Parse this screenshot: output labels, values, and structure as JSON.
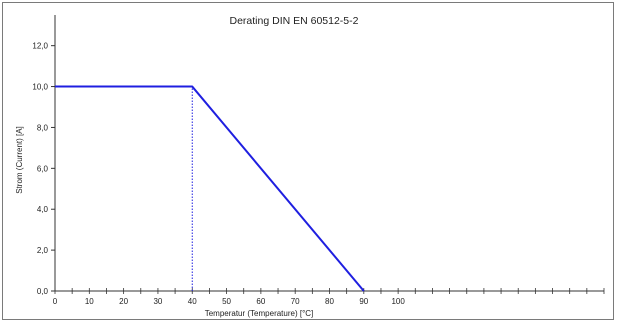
{
  "chart_data": {
    "type": "line",
    "title": "Derating DIN EN 60512-5-2",
    "xlabel": "Temperatur (Temperature) [°C]",
    "ylabel": "Strom (Current) [A]",
    "xlim": [
      0,
      160
    ],
    "ylim": [
      0,
      13.5
    ],
    "x_ticks": [
      0,
      10,
      20,
      30,
      40,
      50,
      60,
      70,
      80,
      90,
      100
    ],
    "x_tick_labels": [
      "0",
      "10",
      "20",
      "30",
      "40",
      "50",
      "60",
      "70",
      "80",
      "90",
      "100"
    ],
    "x_minor_step": 5,
    "y_ticks": [
      0,
      2,
      4,
      6,
      8,
      10,
      12
    ],
    "y_tick_labels": [
      "0,0",
      "2,0",
      "4,0",
      "6,0",
      "8,0",
      "10,0",
      "12,0"
    ],
    "grid": false,
    "series": [
      {
        "x": [
          0,
          40,
          90
        ],
        "y": [
          10.0,
          10.0,
          0.0
        ],
        "color": "#1f1fe0"
      }
    ],
    "reference_lines": [
      {
        "orientation": "vertical",
        "x": 40,
        "y_from": 0,
        "y_to": 10.0,
        "style": "dotted",
        "color": "#1f1fe0"
      }
    ]
  }
}
